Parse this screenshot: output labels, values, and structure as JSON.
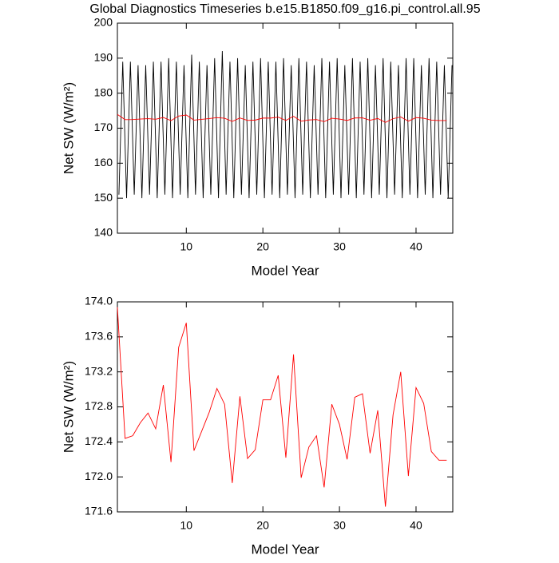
{
  "chart_data": [
    {
      "type": "line",
      "title": "Global Diagnostics Timeseries b.e15.B1850.f09_g16.pi_control.all.95",
      "xlabel": "Model Year",
      "ylabel": "Net SW (W/m²)",
      "xlim": [
        1,
        44.8
      ],
      "xticks": [
        10,
        20,
        30,
        40
      ],
      "ylim": [
        140,
        200
      ],
      "yticks": [
        140,
        150,
        160,
        170,
        180,
        190,
        200
      ],
      "series": [
        {
          "color": "#000000",
          "x": [
            1.2,
            1.7,
            2.2,
            2.7,
            3.2,
            3.7,
            4.2,
            4.7,
            5.2,
            5.7,
            6.2,
            6.7,
            7.2,
            7.7,
            8.2,
            8.7,
            9.2,
            9.7,
            10.2,
            10.7,
            11.2,
            11.7,
            12.2,
            12.7,
            13.2,
            13.7,
            14.2,
            14.7,
            15.2,
            15.7,
            16.2,
            16.7,
            17.2,
            17.7,
            18.2,
            18.7,
            19.2,
            19.7,
            20.2,
            20.7,
            21.2,
            21.7,
            22.2,
            22.7,
            23.2,
            23.7,
            24.2,
            24.7,
            25.2,
            25.7,
            26.2,
            26.7,
            27.2,
            27.7,
            28.2,
            28.7,
            29.2,
            29.7,
            30.2,
            30.7,
            31.2,
            31.7,
            32.2,
            32.7,
            33.2,
            33.7,
            34.2,
            34.7,
            35.2,
            35.7,
            36.2,
            36.7,
            37.2,
            37.7,
            38.2,
            38.7,
            39.2,
            39.7,
            40.2,
            40.7,
            41.2,
            41.7,
            42.2,
            42.7,
            43.2,
            43.7,
            44.2,
            44.7
          ],
          "values": [
            151,
            189,
            150,
            189,
            151,
            188,
            150,
            188,
            151,
            189,
            150,
            189,
            151,
            190,
            150,
            189,
            151,
            188,
            150,
            191,
            151,
            189,
            150,
            188,
            151,
            190,
            150,
            192,
            151,
            189,
            150,
            190,
            151,
            188,
            150,
            189,
            151,
            190,
            150,
            189,
            151,
            189,
            150,
            190,
            151,
            188,
            150,
            190,
            151,
            189,
            150,
            188,
            151,
            190,
            150,
            189,
            151,
            190,
            150,
            188,
            151,
            190,
            150,
            189,
            151,
            190,
            150,
            188,
            151,
            190,
            150,
            189,
            151,
            188,
            150,
            190,
            151,
            190,
            150,
            188,
            151,
            190,
            150,
            189,
            151,
            188,
            150,
            188
          ]
        },
        {
          "color": "#ff0000",
          "x": [
            1,
            2,
            3,
            4,
            5,
            6,
            7,
            8,
            9,
            10,
            11,
            12,
            13,
            14,
            15,
            16,
            17,
            18,
            19,
            20,
            21,
            22,
            23,
            24,
            25,
            26,
            27,
            28,
            29,
            30,
            31,
            32,
            33,
            34,
            35,
            36,
            37,
            38,
            39,
            40,
            41,
            42,
            43,
            44
          ],
          "values": [
            173.94,
            172.44,
            172.47,
            172.62,
            172.73,
            172.55,
            173.05,
            172.17,
            173.48,
            173.76,
            172.3,
            172.52,
            172.74,
            173.01,
            172.83,
            171.93,
            172.92,
            172.21,
            172.31,
            172.88,
            172.88,
            173.16,
            172.22,
            173.4,
            171.99,
            172.34,
            172.47,
            171.88,
            172.83,
            172.6,
            172.2,
            172.91,
            172.95,
            172.27,
            172.76,
            171.66,
            172.71,
            173.2,
            172.01,
            173.02,
            172.84,
            172.29,
            172.19,
            172.19
          ]
        }
      ]
    },
    {
      "type": "line",
      "xlabel": "Model Year",
      "ylabel": "Net SW (W/m²)",
      "xlim": [
        1,
        44.8
      ],
      "xticks": [
        10,
        20,
        30,
        40
      ],
      "ylim": [
        171.6,
        174.0
      ],
      "yticks": [
        171.6,
        {
          "value": 172,
          "label": "172.0"
        },
        172.4,
        172.8,
        173.2,
        173.6,
        {
          "value": 174,
          "label": "174.0"
        }
      ],
      "series": [
        {
          "color": "#ff0000",
          "x": [
            1,
            2,
            3,
            4,
            5,
            6,
            7,
            8,
            9,
            10,
            11,
            12,
            13,
            14,
            15,
            16,
            17,
            18,
            19,
            20,
            21,
            22,
            23,
            24,
            25,
            26,
            27,
            28,
            29,
            30,
            31,
            32,
            33,
            34,
            35,
            36,
            37,
            38,
            39,
            40,
            41,
            42,
            43,
            44
          ],
          "values": [
            173.94,
            172.44,
            172.47,
            172.62,
            172.73,
            172.55,
            173.05,
            172.17,
            173.48,
            173.76,
            172.3,
            172.52,
            172.74,
            173.01,
            172.83,
            171.93,
            172.92,
            172.21,
            172.31,
            172.88,
            172.88,
            173.16,
            172.22,
            173.4,
            171.99,
            172.34,
            172.47,
            171.88,
            172.83,
            172.6,
            172.2,
            172.91,
            172.95,
            172.27,
            172.76,
            171.66,
            172.71,
            173.2,
            172.01,
            173.02,
            172.84,
            172.29,
            172.19,
            172.19
          ]
        }
      ]
    }
  ]
}
